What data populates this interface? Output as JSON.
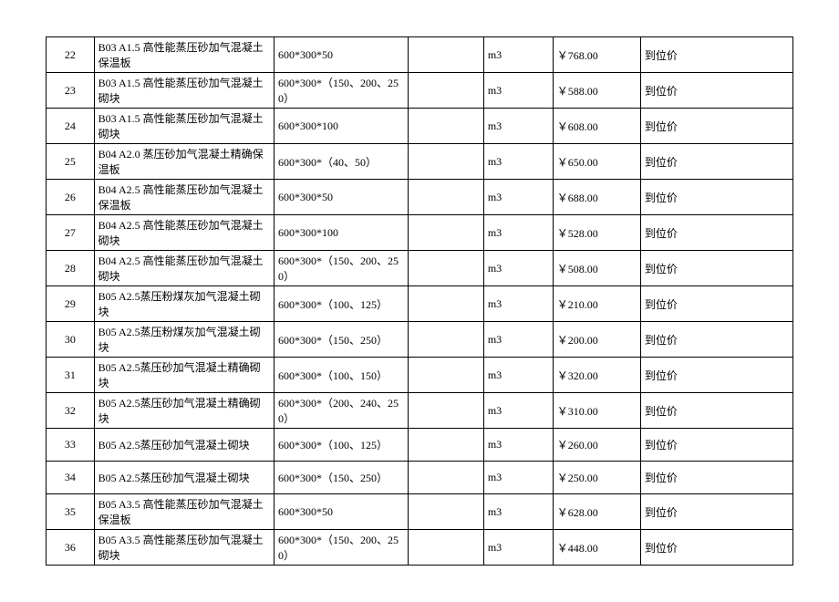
{
  "table": {
    "rows": [
      {
        "num": "22",
        "name": "B03 A1.5 高性能蒸压砂加气混凝土保温板",
        "spec": "600*300*50",
        "blank": "",
        "unit": "m3",
        "price": "￥768.00",
        "note": "到位价"
      },
      {
        "num": "23",
        "name": "B03 A1.5 高性能蒸压砂加气混凝土砌块",
        "spec": "600*300*（150、200、250）",
        "blank": "",
        "unit": "m3",
        "price": "￥588.00",
        "note": "到位价"
      },
      {
        "num": "24",
        "name": "B03 A1.5 高性能蒸压砂加气混凝土砌块",
        "spec": "600*300*100",
        "blank": "",
        "unit": "m3",
        "price": "￥608.00",
        "note": "到位价"
      },
      {
        "num": "25",
        "name": "B04 A2.0 蒸压砂加气混凝土精确保温板",
        "spec": "600*300*（40、50）",
        "blank": "",
        "unit": "m3",
        "price": "￥650.00",
        "note": "到位价"
      },
      {
        "num": "26",
        "name": "B04 A2.5 高性能蒸压砂加气混凝土保温板",
        "spec": "600*300*50",
        "blank": "",
        "unit": "m3",
        "price": "￥688.00",
        "note": "到位价"
      },
      {
        "num": "27",
        "name": "B04 A2.5 高性能蒸压砂加气混凝土砌块",
        "spec": "600*300*100",
        "blank": "",
        "unit": "m3",
        "price": "￥528.00",
        "note": "到位价"
      },
      {
        "num": "28",
        "name": "B04 A2.5 高性能蒸压砂加气混凝土砌块",
        "spec": "600*300*（150、200、250）",
        "blank": "",
        "unit": "m3",
        "price": "￥508.00",
        "note": "到位价"
      },
      {
        "num": "29",
        "name": "B05 A2.5蒸压粉煤灰加气混凝土砌块",
        "spec": "600*300*（100、125）",
        "blank": "",
        "unit": "m3",
        "price": "￥210.00",
        "note": "到位价"
      },
      {
        "num": "30",
        "name": "B05 A2.5蒸压粉煤灰加气混凝土砌块",
        "spec": "600*300*（150、250）",
        "blank": "",
        "unit": "m3",
        "price": "￥200.00",
        "note": "到位价"
      },
      {
        "num": "31",
        "name": "B05 A2.5蒸压砂加气混凝土精确砌块",
        "spec": "600*300*（100、150）",
        "blank": "",
        "unit": "m3",
        "price": "￥320.00",
        "note": "到位价"
      },
      {
        "num": "32",
        "name": "B05 A2.5蒸压砂加气混凝土精确砌块",
        "spec": "600*300*（200、240、250）",
        "blank": "",
        "unit": "m3",
        "price": "￥310.00",
        "note": "到位价"
      },
      {
        "num": "33",
        "name": "B05 A2.5蒸压砂加气混凝土砌块",
        "spec": "600*300*（100、125）",
        "blank": "",
        "unit": "m3",
        "price": "￥260.00",
        "note": "到位价"
      },
      {
        "num": "34",
        "name": "B05 A2.5蒸压砂加气混凝土砌块",
        "spec": "600*300*（150、250）",
        "blank": "",
        "unit": "m3",
        "price": "￥250.00",
        "note": "到位价"
      },
      {
        "num": "35",
        "name": "B05 A3.5 高性能蒸压砂加气混凝土保温板",
        "spec": "600*300*50",
        "blank": "",
        "unit": "m3",
        "price": "￥628.00",
        "note": "到位价"
      },
      {
        "num": "36",
        "name": "B05 A3.5 高性能蒸压砂加气混凝土砌块",
        "spec": "600*300*（150、200、250）",
        "blank": "",
        "unit": "m3",
        "price": "￥448.00",
        "note": "到位价"
      }
    ]
  }
}
